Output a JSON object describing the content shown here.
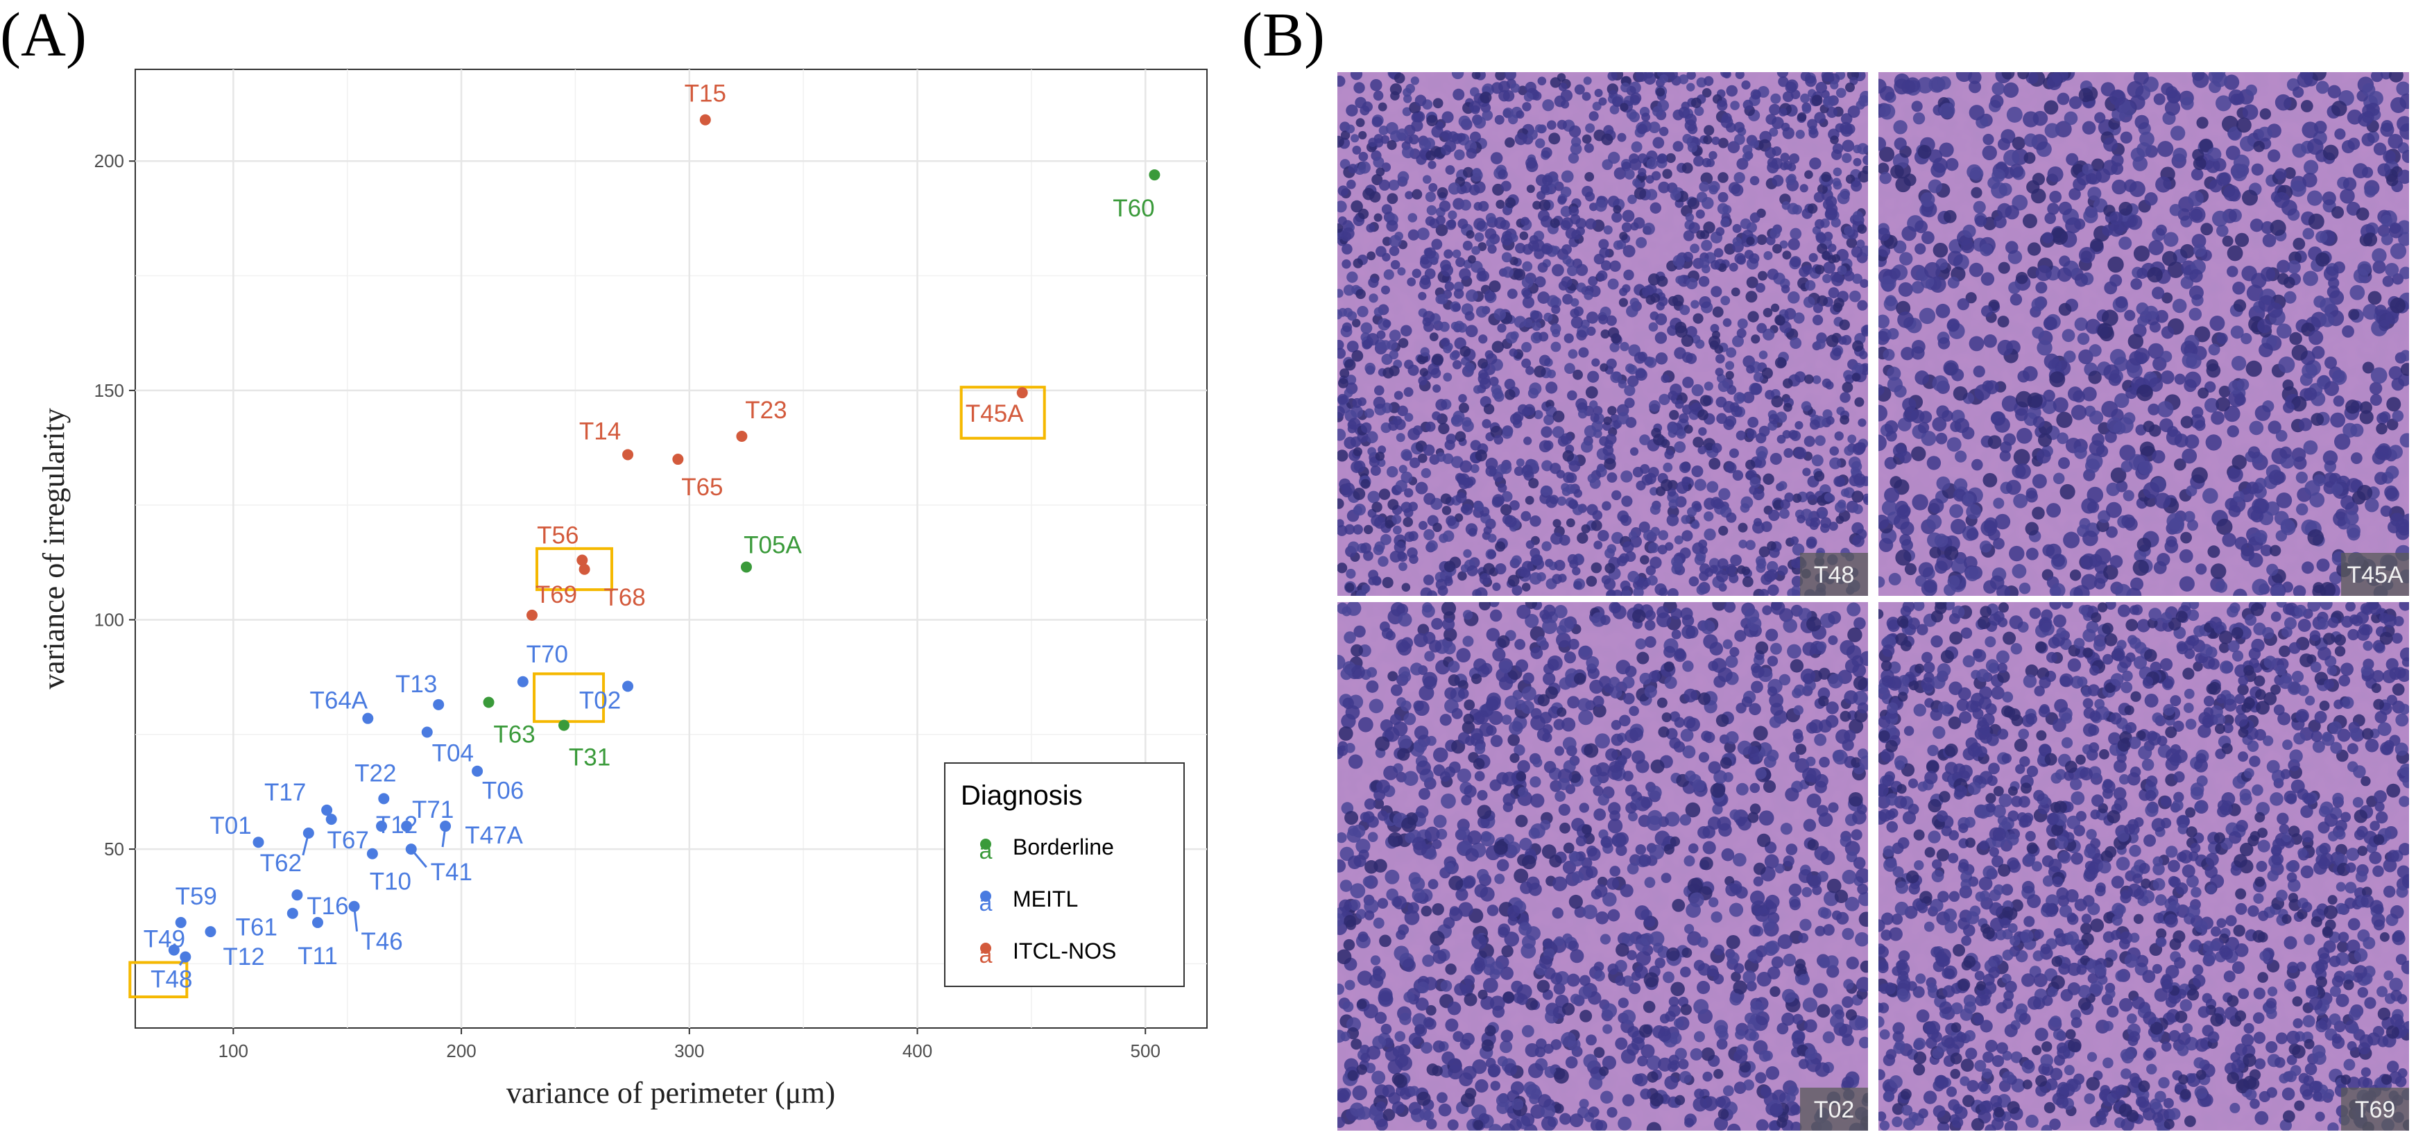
{
  "panels": {
    "left_label": "(A)",
    "right_label": "(B)"
  },
  "colors": {
    "Borderline": "#3a9a3a",
    "MEITL": "#4a7be0",
    "ITCL-NOS": "#d35a3c",
    "highlight": "#f5b800",
    "tissue_base": "#b98bc9",
    "nucleus": "#3f3a8c"
  },
  "chart_data": {
    "type": "scatter",
    "xlabel": "variance of perimeter (μm)",
    "ylabel": "variance of irregularity",
    "xlim": [
      57,
      527
    ],
    "ylim": [
      11,
      220
    ],
    "xticks": [
      100,
      200,
      300,
      400,
      500
    ],
    "yticks": [
      50,
      100,
      150,
      200
    ],
    "grid": true,
    "legend": {
      "title": "Diagnosis",
      "position": "bottom-right",
      "entries": [
        "Borderline",
        "MEITL",
        "ITCL-NOS"
      ],
      "glyph": "a"
    },
    "highlighted": [
      "T45A",
      "T69",
      "T02",
      "T48"
    ],
    "points": [
      {
        "label": "T15",
        "x": 307,
        "y": 209,
        "group": "ITCL-NOS"
      },
      {
        "label": "T60",
        "x": 504,
        "y": 197,
        "group": "Borderline"
      },
      {
        "label": "T45A",
        "x": 446,
        "y": 149.5,
        "group": "ITCL-NOS"
      },
      {
        "label": "T23",
        "x": 323,
        "y": 140,
        "group": "ITCL-NOS"
      },
      {
        "label": "T14",
        "x": 273,
        "y": 136,
        "group": "ITCL-NOS"
      },
      {
        "label": "T65",
        "x": 295,
        "y": 135,
        "group": "ITCL-NOS"
      },
      {
        "label": "T56",
        "x": 253,
        "y": 113,
        "group": "ITCL-NOS"
      },
      {
        "label": "T68",
        "x": 254,
        "y": 111,
        "group": "ITCL-NOS"
      },
      {
        "label": "T05A",
        "x": 325,
        "y": 111.5,
        "group": "Borderline"
      },
      {
        "label": "T69",
        "x": 231,
        "y": 101,
        "group": "ITCL-NOS"
      },
      {
        "label": "T70",
        "x": 227,
        "y": 86.5,
        "group": "MEITL"
      },
      {
        "label": "T02",
        "x": 273,
        "y": 85.5,
        "group": "MEITL"
      },
      {
        "label": "T63",
        "x": 212,
        "y": 82,
        "group": "Borderline"
      },
      {
        "label": "T31",
        "x": 245,
        "y": 77,
        "group": "Borderline"
      },
      {
        "label": "T13",
        "x": 190,
        "y": 81.5,
        "group": "MEITL"
      },
      {
        "label": "T64A",
        "x": 159,
        "y": 78.5,
        "group": "MEITL"
      },
      {
        "label": "T04",
        "x": 185,
        "y": 75.5,
        "group": "MEITL"
      },
      {
        "label": "T06",
        "x": 207,
        "y": 67,
        "group": "MEITL"
      },
      {
        "label": "T22",
        "x": 166,
        "y": 61,
        "group": "MEITL"
      },
      {
        "label": "T17",
        "x": 141,
        "y": 58.5,
        "group": "MEITL"
      },
      {
        "label": "T67",
        "x": 143,
        "y": 56.5,
        "group": "MEITL"
      },
      {
        "label": "T71",
        "x": 176,
        "y": 55,
        "group": "MEITL"
      },
      {
        "label": "T12",
        "x": 165,
        "y": 55,
        "group": "MEITL"
      },
      {
        "label": "T47A",
        "x": 193,
        "y": 55,
        "group": "MEITL"
      },
      {
        "label": "T01",
        "x": 111,
        "y": 51.5,
        "group": "MEITL"
      },
      {
        "label": "T62",
        "x": 133,
        "y": 53.5,
        "group": "MEITL"
      },
      {
        "label": "T10",
        "x": 161,
        "y": 49,
        "group": "MEITL"
      },
      {
        "label": "T41",
        "x": 178,
        "y": 50,
        "group": "MEITL"
      },
      {
        "label": "T16",
        "x": 128,
        "y": 40,
        "group": "MEITL"
      },
      {
        "label": "T46",
        "x": 153,
        "y": 37.5,
        "group": "MEITL"
      },
      {
        "label": "T61",
        "x": 126,
        "y": 36,
        "group": "MEITL"
      },
      {
        "label": "T11",
        "x": 137,
        "y": 34,
        "group": "MEITL"
      },
      {
        "label": "T59",
        "x": 77,
        "y": 34,
        "group": "MEITL"
      },
      {
        "label": "T12",
        "x": 90,
        "y": 32,
        "group": "MEITL"
      },
      {
        "label": "T49",
        "x": 74,
        "y": 28,
        "group": "MEITL"
      },
      {
        "label": "T48",
        "x": 79,
        "y": 26.5,
        "group": "MEITL"
      }
    ]
  },
  "micrographs": [
    {
      "label": "T48",
      "position": "top-left"
    },
    {
      "label": "T45A",
      "position": "top-right"
    },
    {
      "label": "T02",
      "position": "bottom-left"
    },
    {
      "label": "T69",
      "position": "bottom-right"
    }
  ]
}
